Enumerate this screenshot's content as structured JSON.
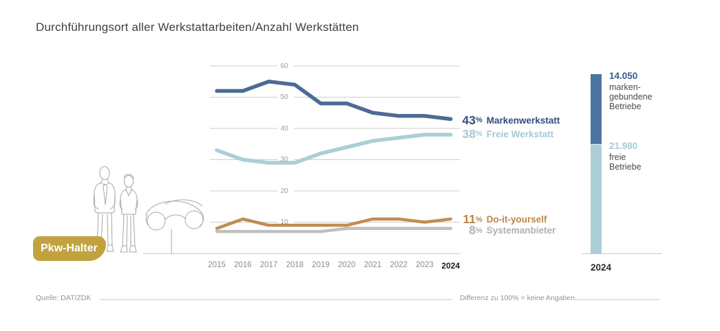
{
  "title": "Durchführungsort aller Werkstattarbeiten/Anzahl Werkstätten",
  "badge": {
    "label": "Pkw-Halter",
    "color": "#c1a23f",
    "text_color": "#ffffff"
  },
  "footer": {
    "source": "Quelle: DAT/ZDK",
    "note": "Differenz zu 100% = keine Angaben"
  },
  "colors": {
    "grid": "#cccccc",
    "baseline": "#c9c9c9",
    "illustration_stroke": "#a6a6a6"
  },
  "chart_data": [
    {
      "type": "line",
      "title": "Durchführungsort aller Werkstattarbeiten",
      "x": [
        2015,
        2016,
        2017,
        2018,
        2019,
        2020,
        2021,
        2022,
        2023,
        2024
      ],
      "unit": "%",
      "ylim": [
        0,
        60
      ],
      "yticks": [
        60,
        50,
        40,
        30,
        20,
        10
      ],
      "grid": true,
      "legend_position": "right-end-labels",
      "series": [
        {
          "name": "Markenwerkstatt",
          "values": [
            52,
            52,
            55,
            54,
            48,
            48,
            45,
            44,
            44,
            43
          ],
          "end_label": "43",
          "unit": "%",
          "color": "#4a6c96",
          "label_color": "#2f4e7a"
        },
        {
          "name": "Freie Werkstatt",
          "values": [
            33,
            30,
            29,
            29,
            32,
            34,
            36,
            37,
            38,
            38
          ],
          "end_label": "38",
          "unit": "%",
          "color": "#aacfd6",
          "label_color": "#a3c9d3"
        },
        {
          "name": "Do-it-yourself",
          "values": [
            8,
            11,
            9,
            9,
            9,
            9,
            11,
            11,
            10,
            11
          ],
          "end_label": "11",
          "unit": "%",
          "color": "#c28c52",
          "label_color": "#bd8546"
        },
        {
          "name": "Systemanbieter",
          "values": [
            7,
            7,
            7,
            7,
            7,
            8,
            8,
            8,
            8,
            8
          ],
          "end_label": "8",
          "unit": "%",
          "color": "#bfbfbf",
          "label_color": "#b0b0b0"
        }
      ]
    },
    {
      "type": "bar",
      "title": "Anzahl Werkstätten",
      "stacked": true,
      "x_label": "2024",
      "desc_color": "#4b4b4b",
      "segments": [
        {
          "name": "markengebundene Betriebe",
          "value": 14050,
          "value_label": "14.050",
          "desc_lines": [
            "marken-",
            "gebundene",
            "Betriebe"
          ],
          "color": "#4d74a1",
          "label_color": "#33608f"
        },
        {
          "name": "freie Betriebe",
          "value": 21980,
          "value_label": "21.980",
          "desc_lines": [
            "freie",
            "Betriebe"
          ],
          "color": "#abced7",
          "label_color": "#a5ccd6"
        }
      ]
    }
  ]
}
